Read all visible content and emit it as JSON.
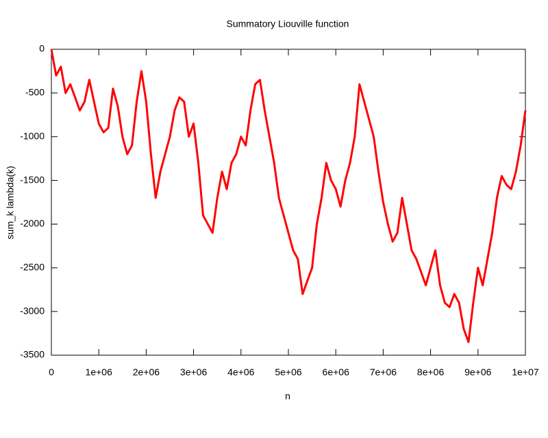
{
  "chart_data": {
    "type": "line",
    "title": "Summatory Liouville function",
    "x_label": "n",
    "y_label": "sum_k lambda(k)",
    "x": [
      0,
      100000,
      200000,
      300000,
      400000,
      500000,
      600000,
      700000,
      800000,
      900000,
      1000000,
      1100000,
      1200000,
      1300000,
      1400000,
      1500000,
      1600000,
      1700000,
      1800000,
      1900000,
      2000000,
      2100000,
      2200000,
      2300000,
      2400000,
      2500000,
      2600000,
      2700000,
      2800000,
      2900000,
      3000000,
      3100000,
      3200000,
      3300000,
      3400000,
      3500000,
      3600000,
      3700000,
      3800000,
      3900000,
      4000000,
      4100000,
      4200000,
      4300000,
      4400000,
      4500000,
      4600000,
      4700000,
      4800000,
      4900000,
      5000000,
      5100000,
      5200000,
      5300000,
      5400000,
      5500000,
      5600000,
      5700000,
      5800000,
      5900000,
      6000000,
      6100000,
      6200000,
      6300000,
      6400000,
      6500000,
      6600000,
      6700000,
      6800000,
      6900000,
      7000000,
      7100000,
      7200000,
      7300000,
      7400000,
      7500000,
      7600000,
      7700000,
      7800000,
      7900000,
      8000000,
      8100000,
      8200000,
      8300000,
      8400000,
      8500000,
      8600000,
      8700000,
      8800000,
      8900000,
      9000000,
      9100000,
      9200000,
      9300000,
      9400000,
      9500000,
      9600000,
      9700000,
      9800000,
      9900000,
      10000000
    ],
    "series": [
      {
        "color": "#ff0000",
        "values": [
          0,
          -300,
          -200,
          -500,
          -400,
          -550,
          -700,
          -600,
          -350,
          -600,
          -850,
          -950,
          -900,
          -450,
          -650,
          -1000,
          -1200,
          -1100,
          -600,
          -250,
          -600,
          -1200,
          -1700,
          -1400,
          -1200,
          -1000,
          -700,
          -550,
          -600,
          -1000,
          -850,
          -1300,
          -1900,
          -2000,
          -2100,
          -1700,
          -1400,
          -1600,
          -1300,
          -1200,
          -1000,
          -1100,
          -700,
          -400,
          -350,
          -700,
          -1000,
          -1300,
          -1700,
          -1900,
          -2100,
          -2300,
          -2400,
          -2800,
          -2650,
          -2500,
          -2000,
          -1700,
          -1300,
          -1500,
          -1600,
          -1800,
          -1500,
          -1300,
          -1000,
          -400,
          -600,
          -800,
          -1000,
          -1400,
          -1750,
          -2000,
          -2200,
          -2100,
          -1700,
          -2000,
          -2300,
          -2400,
          -2550,
          -2700,
          -2500,
          -2300,
          -2700,
          -2900,
          -2950,
          -2800,
          -2900,
          -3200,
          -3350,
          -2900,
          -2500,
          -2700,
          -2400,
          -2100,
          -1700,
          -1450,
          -1550,
          -1600,
          -1400,
          -1100,
          -700
        ]
      }
    ],
    "xlim": [
      0,
      10000000
    ],
    "ylim": [
      -3500,
      0
    ],
    "xticks": [
      0,
      {
        "value": 1000000,
        "label": "1e+06"
      },
      {
        "value": 2000000,
        "label": "2e+06"
      },
      {
        "value": 3000000,
        "label": "3e+06"
      },
      {
        "value": 4000000,
        "label": "4e+06"
      },
      {
        "value": 5000000,
        "label": "5e+06"
      },
      {
        "value": 6000000,
        "label": "6e+06"
      },
      {
        "value": 7000000,
        "label": "7e+06"
      },
      {
        "value": 8000000,
        "label": "8e+06"
      },
      {
        "value": 9000000,
        "label": "9e+06"
      },
      {
        "value": 10000000,
        "label": "1e+07"
      }
    ],
    "yticks": [
      0,
      -500,
      -1000,
      -1500,
      -2000,
      -2500,
      -3000,
      -3500
    ]
  }
}
